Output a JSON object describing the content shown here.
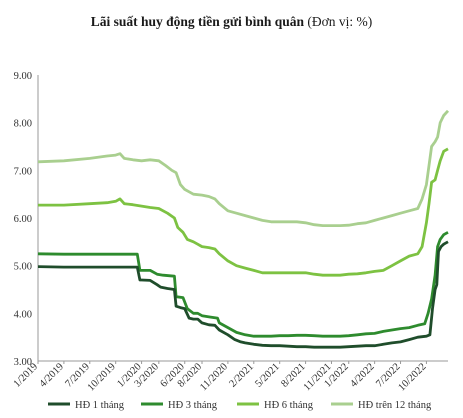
{
  "chart_data": {
    "type": "line",
    "title": "Lãi suất huy động tiền gửi bình quân",
    "subtitle": "(Đơn vị: %)",
    "xlabel": "",
    "ylabel": "",
    "ylim": [
      3.0,
      9.0
    ],
    "yticks": [
      "3.00",
      "4.00",
      "5.00",
      "6.00",
      "7.00",
      "8.00",
      "9.00"
    ],
    "x_range": [
      0,
      47.5
    ],
    "xticks": [
      {
        "label": "1/2019",
        "x": 0
      },
      {
        "label": "4/2019",
        "x": 3
      },
      {
        "label": "7/2019",
        "x": 6
      },
      {
        "label": "10/2019",
        "x": 9
      },
      {
        "label": "1/2020",
        "x": 12
      },
      {
        "label": "3/2020",
        "x": 14
      },
      {
        "label": "6/2020",
        "x": 17
      },
      {
        "label": "8/2020",
        "x": 19
      },
      {
        "label": "11/2020",
        "x": 22
      },
      {
        "label": "2/2021",
        "x": 25
      },
      {
        "label": "5/2021",
        "x": 28
      },
      {
        "label": "8/2021",
        "x": 31
      },
      {
        "label": "11/2021",
        "x": 34
      },
      {
        "label": "1/2022",
        "x": 36
      },
      {
        "label": "4/2022",
        "x": 39
      },
      {
        "label": "7/2022",
        "x": 42
      },
      {
        "label": "10/2022",
        "x": 45
      }
    ],
    "grid": false,
    "legend_position": "bottom",
    "series": [
      {
        "name": "HĐ 1 tháng",
        "color": "#1f4d2b",
        "points": [
          [
            0,
            4.98
          ],
          [
            3,
            4.97
          ],
          [
            6,
            4.97
          ],
          [
            9,
            4.97
          ],
          [
            11.5,
            4.97
          ],
          [
            11.8,
            4.7
          ],
          [
            12,
            4.7
          ],
          [
            13,
            4.69
          ],
          [
            13.8,
            4.6
          ],
          [
            14.2,
            4.55
          ],
          [
            15,
            4.52
          ],
          [
            15.8,
            4.5
          ],
          [
            16,
            4.15
          ],
          [
            16.5,
            4.12
          ],
          [
            17,
            4.1
          ],
          [
            17.5,
            3.9
          ],
          [
            18,
            3.88
          ],
          [
            18.5,
            3.88
          ],
          [
            19,
            3.8
          ],
          [
            19.8,
            3.76
          ],
          [
            20.5,
            3.75
          ],
          [
            21,
            3.65
          ],
          [
            22,
            3.55
          ],
          [
            22.8,
            3.45
          ],
          [
            23.5,
            3.4
          ],
          [
            24,
            3.38
          ],
          [
            25,
            3.35
          ],
          [
            26,
            3.33
          ],
          [
            27,
            3.32
          ],
          [
            28,
            3.32
          ],
          [
            29,
            3.31
          ],
          [
            30,
            3.3
          ],
          [
            31,
            3.3
          ],
          [
            32,
            3.29
          ],
          [
            33,
            3.29
          ],
          [
            34,
            3.29
          ],
          [
            35,
            3.29
          ],
          [
            36,
            3.3
          ],
          [
            37,
            3.31
          ],
          [
            38,
            3.32
          ],
          [
            39,
            3.32
          ],
          [
            40,
            3.35
          ],
          [
            41,
            3.38
          ],
          [
            42,
            3.4
          ],
          [
            43,
            3.45
          ],
          [
            44,
            3.5
          ],
          [
            45,
            3.52
          ],
          [
            45.4,
            3.55
          ],
          [
            45.7,
            4.1
          ],
          [
            46,
            4.5
          ],
          [
            46.2,
            4.6
          ],
          [
            46.4,
            5.3
          ],
          [
            46.7,
            5.4
          ],
          [
            47,
            5.45
          ],
          [
            47.5,
            5.5
          ]
        ]
      },
      {
        "name": "HĐ 3 tháng",
        "color": "#2e8b2e",
        "points": [
          [
            0,
            5.25
          ],
          [
            3,
            5.24
          ],
          [
            6,
            5.24
          ],
          [
            9,
            5.24
          ],
          [
            11.5,
            5.24
          ],
          [
            11.8,
            4.9
          ],
          [
            13,
            4.9
          ],
          [
            13.8,
            4.82
          ],
          [
            14.5,
            4.8
          ],
          [
            15.8,
            4.78
          ],
          [
            16,
            4.35
          ],
          [
            16.8,
            4.33
          ],
          [
            17.3,
            4.1
          ],
          [
            18,
            4.0
          ],
          [
            18.5,
            4.0
          ],
          [
            19,
            3.95
          ],
          [
            20,
            3.92
          ],
          [
            20.8,
            3.9
          ],
          [
            21,
            3.8
          ],
          [
            22,
            3.7
          ],
          [
            23,
            3.6
          ],
          [
            24,
            3.55
          ],
          [
            25,
            3.52
          ],
          [
            26,
            3.52
          ],
          [
            27,
            3.52
          ],
          [
            28,
            3.53
          ],
          [
            29,
            3.53
          ],
          [
            30,
            3.54
          ],
          [
            31,
            3.54
          ],
          [
            32,
            3.53
          ],
          [
            33,
            3.52
          ],
          [
            34,
            3.52
          ],
          [
            35,
            3.52
          ],
          [
            36,
            3.53
          ],
          [
            37,
            3.55
          ],
          [
            38,
            3.57
          ],
          [
            39,
            3.58
          ],
          [
            40,
            3.62
          ],
          [
            41,
            3.65
          ],
          [
            42,
            3.68
          ],
          [
            43,
            3.7
          ],
          [
            44,
            3.75
          ],
          [
            44.8,
            3.78
          ],
          [
            45.2,
            4.0
          ],
          [
            45.6,
            4.3
          ],
          [
            46,
            4.8
          ],
          [
            46.3,
            5.4
          ],
          [
            46.6,
            5.55
          ],
          [
            47,
            5.65
          ],
          [
            47.5,
            5.7
          ]
        ]
      },
      {
        "name": "HĐ 6 tháng",
        "color": "#7dc242",
        "points": [
          [
            0,
            6.27
          ],
          [
            3,
            6.27
          ],
          [
            6,
            6.3
          ],
          [
            8,
            6.32
          ],
          [
            9,
            6.35
          ],
          [
            9.5,
            6.4
          ],
          [
            10,
            6.3
          ],
          [
            11,
            6.28
          ],
          [
            12,
            6.25
          ],
          [
            13,
            6.22
          ],
          [
            14,
            6.2
          ],
          [
            15,
            6.1
          ],
          [
            15.8,
            6.0
          ],
          [
            16.2,
            5.8
          ],
          [
            16.8,
            5.7
          ],
          [
            17.3,
            5.55
          ],
          [
            18,
            5.5
          ],
          [
            18.5,
            5.45
          ],
          [
            19,
            5.4
          ],
          [
            19.8,
            5.38
          ],
          [
            20.5,
            5.35
          ],
          [
            21,
            5.25
          ],
          [
            22,
            5.1
          ],
          [
            23,
            5.0
          ],
          [
            24,
            4.95
          ],
          [
            25,
            4.9
          ],
          [
            26,
            4.85
          ],
          [
            27,
            4.85
          ],
          [
            28,
            4.85
          ],
          [
            29,
            4.85
          ],
          [
            30,
            4.85
          ],
          [
            31,
            4.85
          ],
          [
            32,
            4.82
          ],
          [
            33,
            4.8
          ],
          [
            34,
            4.8
          ],
          [
            35,
            4.8
          ],
          [
            36,
            4.82
          ],
          [
            37,
            4.83
          ],
          [
            38,
            4.85
          ],
          [
            39,
            4.88
          ],
          [
            40,
            4.9
          ],
          [
            41,
            5.0
          ],
          [
            42,
            5.1
          ],
          [
            43,
            5.2
          ],
          [
            44,
            5.25
          ],
          [
            44.5,
            5.4
          ],
          [
            45,
            5.9
          ],
          [
            45.3,
            6.3
          ],
          [
            45.6,
            6.75
          ],
          [
            46,
            6.8
          ],
          [
            46.3,
            7.0
          ],
          [
            46.6,
            7.2
          ],
          [
            47,
            7.4
          ],
          [
            47.5,
            7.45
          ]
        ]
      },
      {
        "name": "HĐ trên 12 tháng",
        "color": "#a9cf8f",
        "points": [
          [
            0,
            7.18
          ],
          [
            3,
            7.2
          ],
          [
            6,
            7.25
          ],
          [
            8,
            7.3
          ],
          [
            9,
            7.32
          ],
          [
            9.5,
            7.35
          ],
          [
            10,
            7.25
          ],
          [
            11,
            7.22
          ],
          [
            12,
            7.2
          ],
          [
            13,
            7.22
          ],
          [
            14,
            7.2
          ],
          [
            14.8,
            7.1
          ],
          [
            15.5,
            7.0
          ],
          [
            16,
            6.95
          ],
          [
            16.5,
            6.7
          ],
          [
            17,
            6.6
          ],
          [
            17.5,
            6.55
          ],
          [
            18,
            6.5
          ],
          [
            19,
            6.48
          ],
          [
            19.8,
            6.45
          ],
          [
            20.5,
            6.4
          ],
          [
            21,
            6.3
          ],
          [
            22,
            6.15
          ],
          [
            23,
            6.1
          ],
          [
            24,
            6.05
          ],
          [
            25,
            6.0
          ],
          [
            26,
            5.95
          ],
          [
            27,
            5.92
          ],
          [
            28,
            5.92
          ],
          [
            29,
            5.92
          ],
          [
            30,
            5.92
          ],
          [
            31,
            5.9
          ],
          [
            32,
            5.86
          ],
          [
            33,
            5.84
          ],
          [
            34,
            5.84
          ],
          [
            35,
            5.84
          ],
          [
            36,
            5.85
          ],
          [
            37,
            5.88
          ],
          [
            38,
            5.9
          ],
          [
            39,
            5.95
          ],
          [
            40,
            6.0
          ],
          [
            41,
            6.05
          ],
          [
            42,
            6.1
          ],
          [
            43,
            6.15
          ],
          [
            44,
            6.2
          ],
          [
            44.5,
            6.4
          ],
          [
            45,
            6.7
          ],
          [
            45.3,
            7.1
          ],
          [
            45.6,
            7.5
          ],
          [
            46,
            7.6
          ],
          [
            46.3,
            7.7
          ],
          [
            46.6,
            8.0
          ],
          [
            47,
            8.15
          ],
          [
            47.5,
            8.25
          ]
        ]
      }
    ]
  }
}
